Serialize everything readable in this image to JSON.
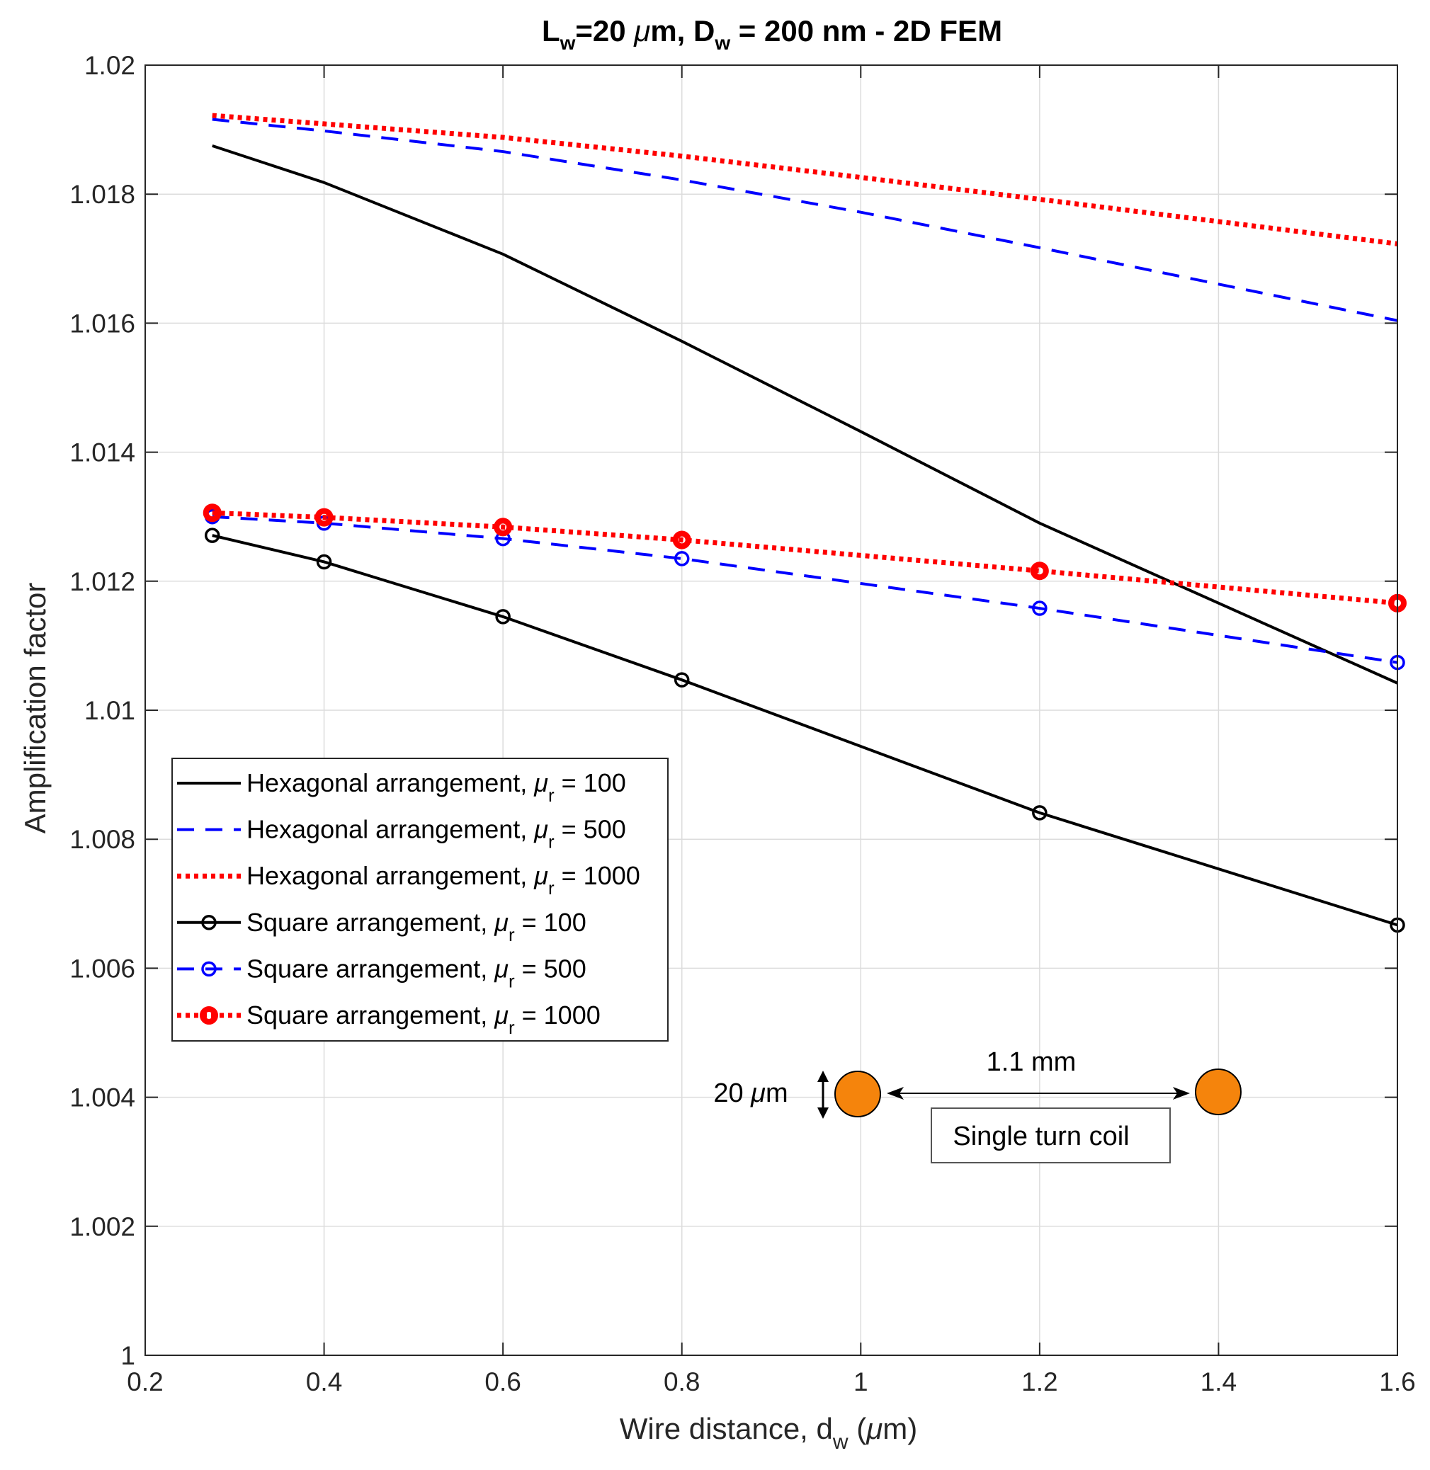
{
  "chart_data": {
    "type": "line",
    "title": "L_w=20 μm, D_w = 200 nm - 2D FEM",
    "title_parts": {
      "L": "L",
      "Lsub": "w",
      "mid": "=20 ",
      "mu": "μ",
      "mid2": "m, D",
      "Dsub": "w",
      "end": " = 200 nm - 2D FEM"
    },
    "xlabel": "Wire distance, d_w (μm)",
    "xlabel_parts": {
      "pre": "Wire distance, d",
      "sub": "w",
      "open": " (",
      "mu": "μ",
      "post": "m)"
    },
    "ylabel": "Amplification factor",
    "xlim": [
      0.2,
      1.6
    ],
    "ylim": [
      1.0,
      1.02
    ],
    "xticks": [
      0.2,
      0.4,
      0.6,
      0.8,
      1.0,
      1.2,
      1.4,
      1.6
    ],
    "xtick_labels": [
      "0.2",
      "0.4",
      "0.6",
      "0.8",
      "1",
      "1.2",
      "1.4",
      "1.6"
    ],
    "yticks": [
      1.0,
      1.002,
      1.004,
      1.006,
      1.008,
      1.01,
      1.012,
      1.014,
      1.016,
      1.018,
      1.02
    ],
    "ytick_labels": [
      "1",
      "1.002",
      "1.004",
      "1.006",
      "1.008",
      "1.01",
      "1.012",
      "1.014",
      "1.016",
      "1.018",
      "1.02"
    ],
    "grid": true,
    "legend_position": "lower-left",
    "series": [
      {
        "name": "Hexagonal arrangement, μr = 100",
        "label_pre": "Hexagonal arrangement, ",
        "label_val": " = 100",
        "color": "#000000",
        "style": "solid",
        "marker": "none",
        "x": [
          0.275,
          0.4,
          0.6,
          0.8,
          1.0,
          1.2,
          1.6
        ],
        "y": [
          1.01875,
          1.01818,
          1.01707,
          1.01572,
          1.01432,
          1.0129,
          1.01042
        ]
      },
      {
        "name": "Hexagonal arrangement, μr = 500",
        "label_pre": "Hexagonal arrangement, ",
        "label_val": " = 500",
        "color": "#0000ff",
        "style": "dashed",
        "marker": "none",
        "x": [
          0.275,
          0.4,
          0.6,
          0.8,
          1.0,
          1.2,
          1.6
        ],
        "y": [
          1.01916,
          1.01898,
          1.01866,
          1.01822,
          1.01772,
          1.01717,
          1.01604
        ]
      },
      {
        "name": "Hexagonal arrangement, μr = 1000",
        "label_pre": "Hexagonal arrangement, ",
        "label_val": " = 1000",
        "color": "#ff0000",
        "style": "dotted",
        "marker": "none",
        "x": [
          0.275,
          0.4,
          0.6,
          0.8,
          1.0,
          1.2,
          1.6
        ],
        "y": [
          1.01922,
          1.01909,
          1.01888,
          1.01859,
          1.01826,
          1.01792,
          1.01723
        ]
      },
      {
        "name": "Square arrangement, μr = 100",
        "label_pre": "Square arrangement, ",
        "label_val": " = 100",
        "color": "#000000",
        "style": "solid",
        "marker": "circle",
        "x": [
          0.275,
          0.4,
          0.6,
          0.8,
          1.2,
          1.6
        ],
        "y": [
          1.01271,
          1.0123,
          1.01145,
          1.01047,
          1.00841,
          1.00667
        ]
      },
      {
        "name": "Square arrangement, μr = 500",
        "label_pre": "Square arrangement, ",
        "label_val": " = 500",
        "color": "#0000ff",
        "style": "dashed",
        "marker": "circle",
        "x": [
          0.275,
          0.4,
          0.6,
          0.8,
          1.2,
          1.6
        ],
        "y": [
          1.013,
          1.0129,
          1.01266,
          1.01235,
          1.01158,
          1.01074
        ]
      },
      {
        "name": "Square arrangement, μr = 1000",
        "label_pre": "Square arrangement, ",
        "label_val": " = 1000",
        "color": "#ff0000",
        "style": "dotted",
        "marker": "circle",
        "x": [
          0.275,
          0.4,
          0.6,
          0.8,
          1.2,
          1.6
        ],
        "y": [
          1.01306,
          1.01299,
          1.01284,
          1.01264,
          1.01216,
          1.01166
        ]
      }
    ],
    "legend_mu": "μ",
    "legend_sub": "r",
    "annotation": {
      "wire_size": "20 μm",
      "wire_size_num": "20 ",
      "wire_size_mu": "μ",
      "wire_size_unit": "m",
      "separation": "1.1 mm",
      "box_label": "Single turn coil",
      "wire_color": "#f5840c"
    }
  }
}
